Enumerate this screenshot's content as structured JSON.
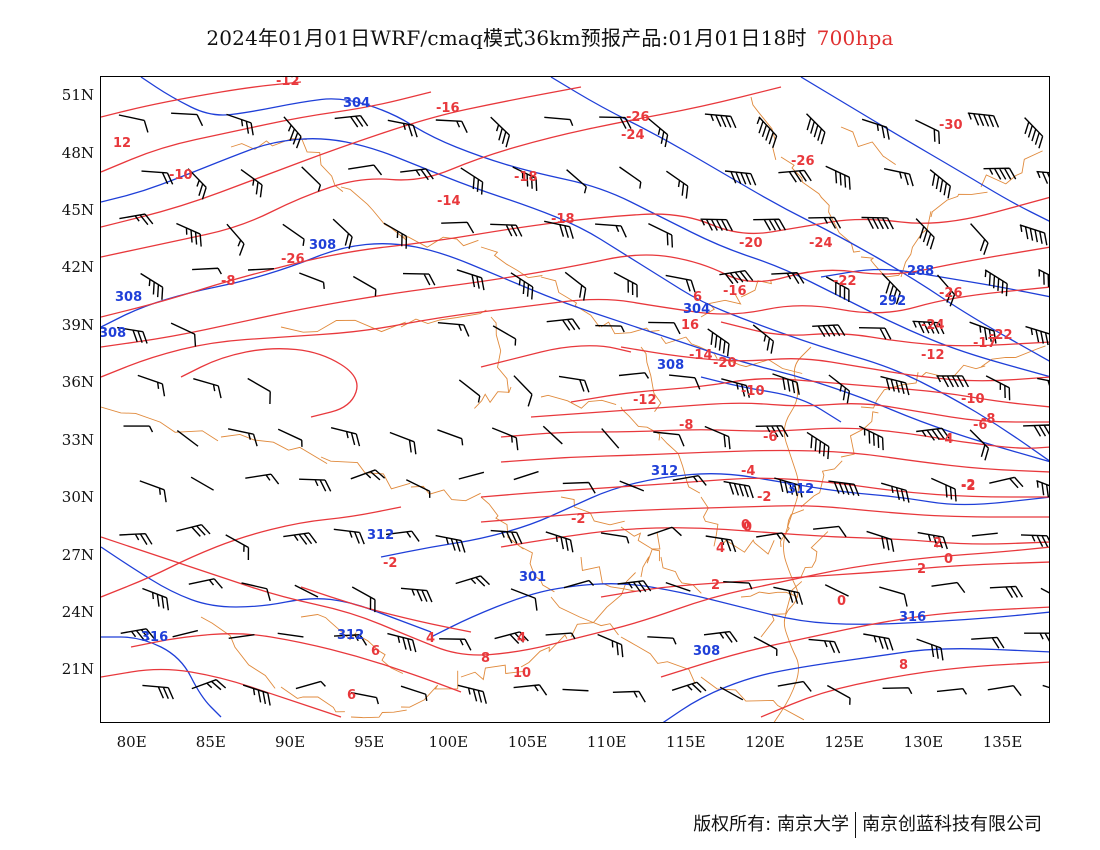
{
  "header": {
    "title": "2024年01月01日WRF/cmaq模式36km预报产品:01月01日18时",
    "level": "700hpa",
    "level_color": "#e03030"
  },
  "axes": {
    "lat_labels": [
      "51N",
      "48N",
      "45N",
      "42N",
      "39N",
      "36N",
      "33N",
      "30N",
      "27N",
      "24N",
      "21N"
    ],
    "lat_values": [
      51,
      48,
      45,
      42,
      39,
      36,
      33,
      30,
      27,
      24,
      21
    ],
    "lon_labels": [
      "80E",
      "85E",
      "90E",
      "95E",
      "100E",
      "105E",
      "110E",
      "115E",
      "120E",
      "125E",
      "130E",
      "135E"
    ],
    "lon_values": [
      80,
      85,
      90,
      95,
      100,
      105,
      110,
      115,
      120,
      125,
      130,
      135
    ],
    "lon_range": [
      78,
      138
    ],
    "lat_range": [
      18.2,
      52.0
    ]
  },
  "map": {
    "temperature_color": "#e8383c",
    "height_color": "#1f3fd8",
    "boundary_color": "#e08a3c",
    "wind_color": "#000000",
    "temperature_labels": [
      "-12",
      "-16",
      "-26",
      "-24",
      "-30",
      "-26",
      "12",
      "-10",
      "-18",
      "-14",
      "-18",
      "-20",
      "-24",
      "-22",
      "-26",
      "-26",
      "-8",
      "6",
      "-16",
      "16",
      "-14",
      "-12",
      "-17",
      "-22",
      "-24",
      "-20",
      "-12",
      "-10",
      "-10",
      "-8",
      "-8",
      "-6",
      "-6",
      "-4",
      "-4",
      "-2",
      "-2",
      "-2",
      "0",
      "0",
      "-2",
      "2",
      "2",
      "2",
      "4",
      "4",
      "4",
      "6",
      "6",
      "8",
      "8",
      "10",
      "0",
      "0",
      "-2"
    ],
    "height_labels": [
      "304",
      "308",
      "308",
      "308",
      "304",
      "308",
      "312",
      "312",
      "312",
      "301",
      "316",
      "316",
      "312",
      "308",
      "292",
      "288"
    ]
  },
  "footer": {
    "copyright_label": "版权所有:",
    "owner_1": "南京大学",
    "owner_2": "南京创蓝科技有限公司"
  }
}
